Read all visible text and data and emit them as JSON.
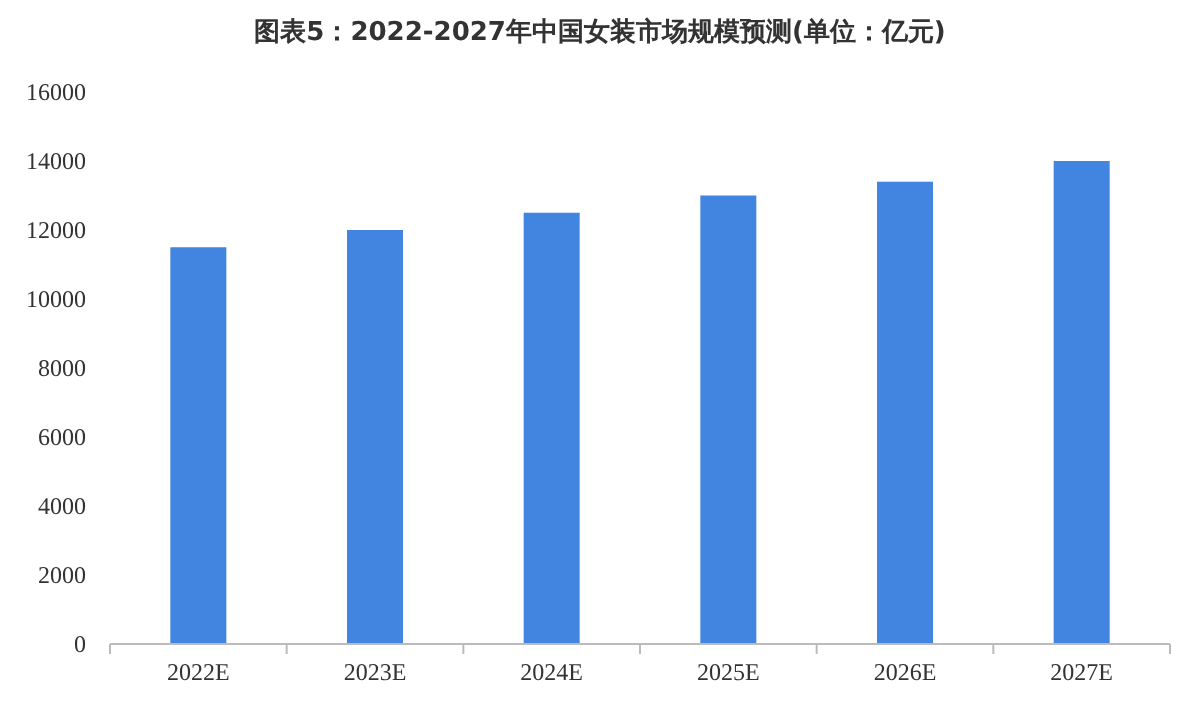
{
  "chart_data": {
    "type": "bar",
    "title": "图表5：2022-2027年中国女装市场规模预测(单位：亿元)",
    "categories": [
      "2022E",
      "2023E",
      "2024E",
      "2025E",
      "2026E",
      "2027E"
    ],
    "values": [
      11500,
      12000,
      12500,
      13000,
      13400,
      14000
    ],
    "color": "#4285e0",
    "ylim": [
      0,
      16000
    ],
    "yticks": [
      0,
      2000,
      4000,
      6000,
      8000,
      10000,
      12000,
      14000,
      16000
    ],
    "grid": false
  }
}
